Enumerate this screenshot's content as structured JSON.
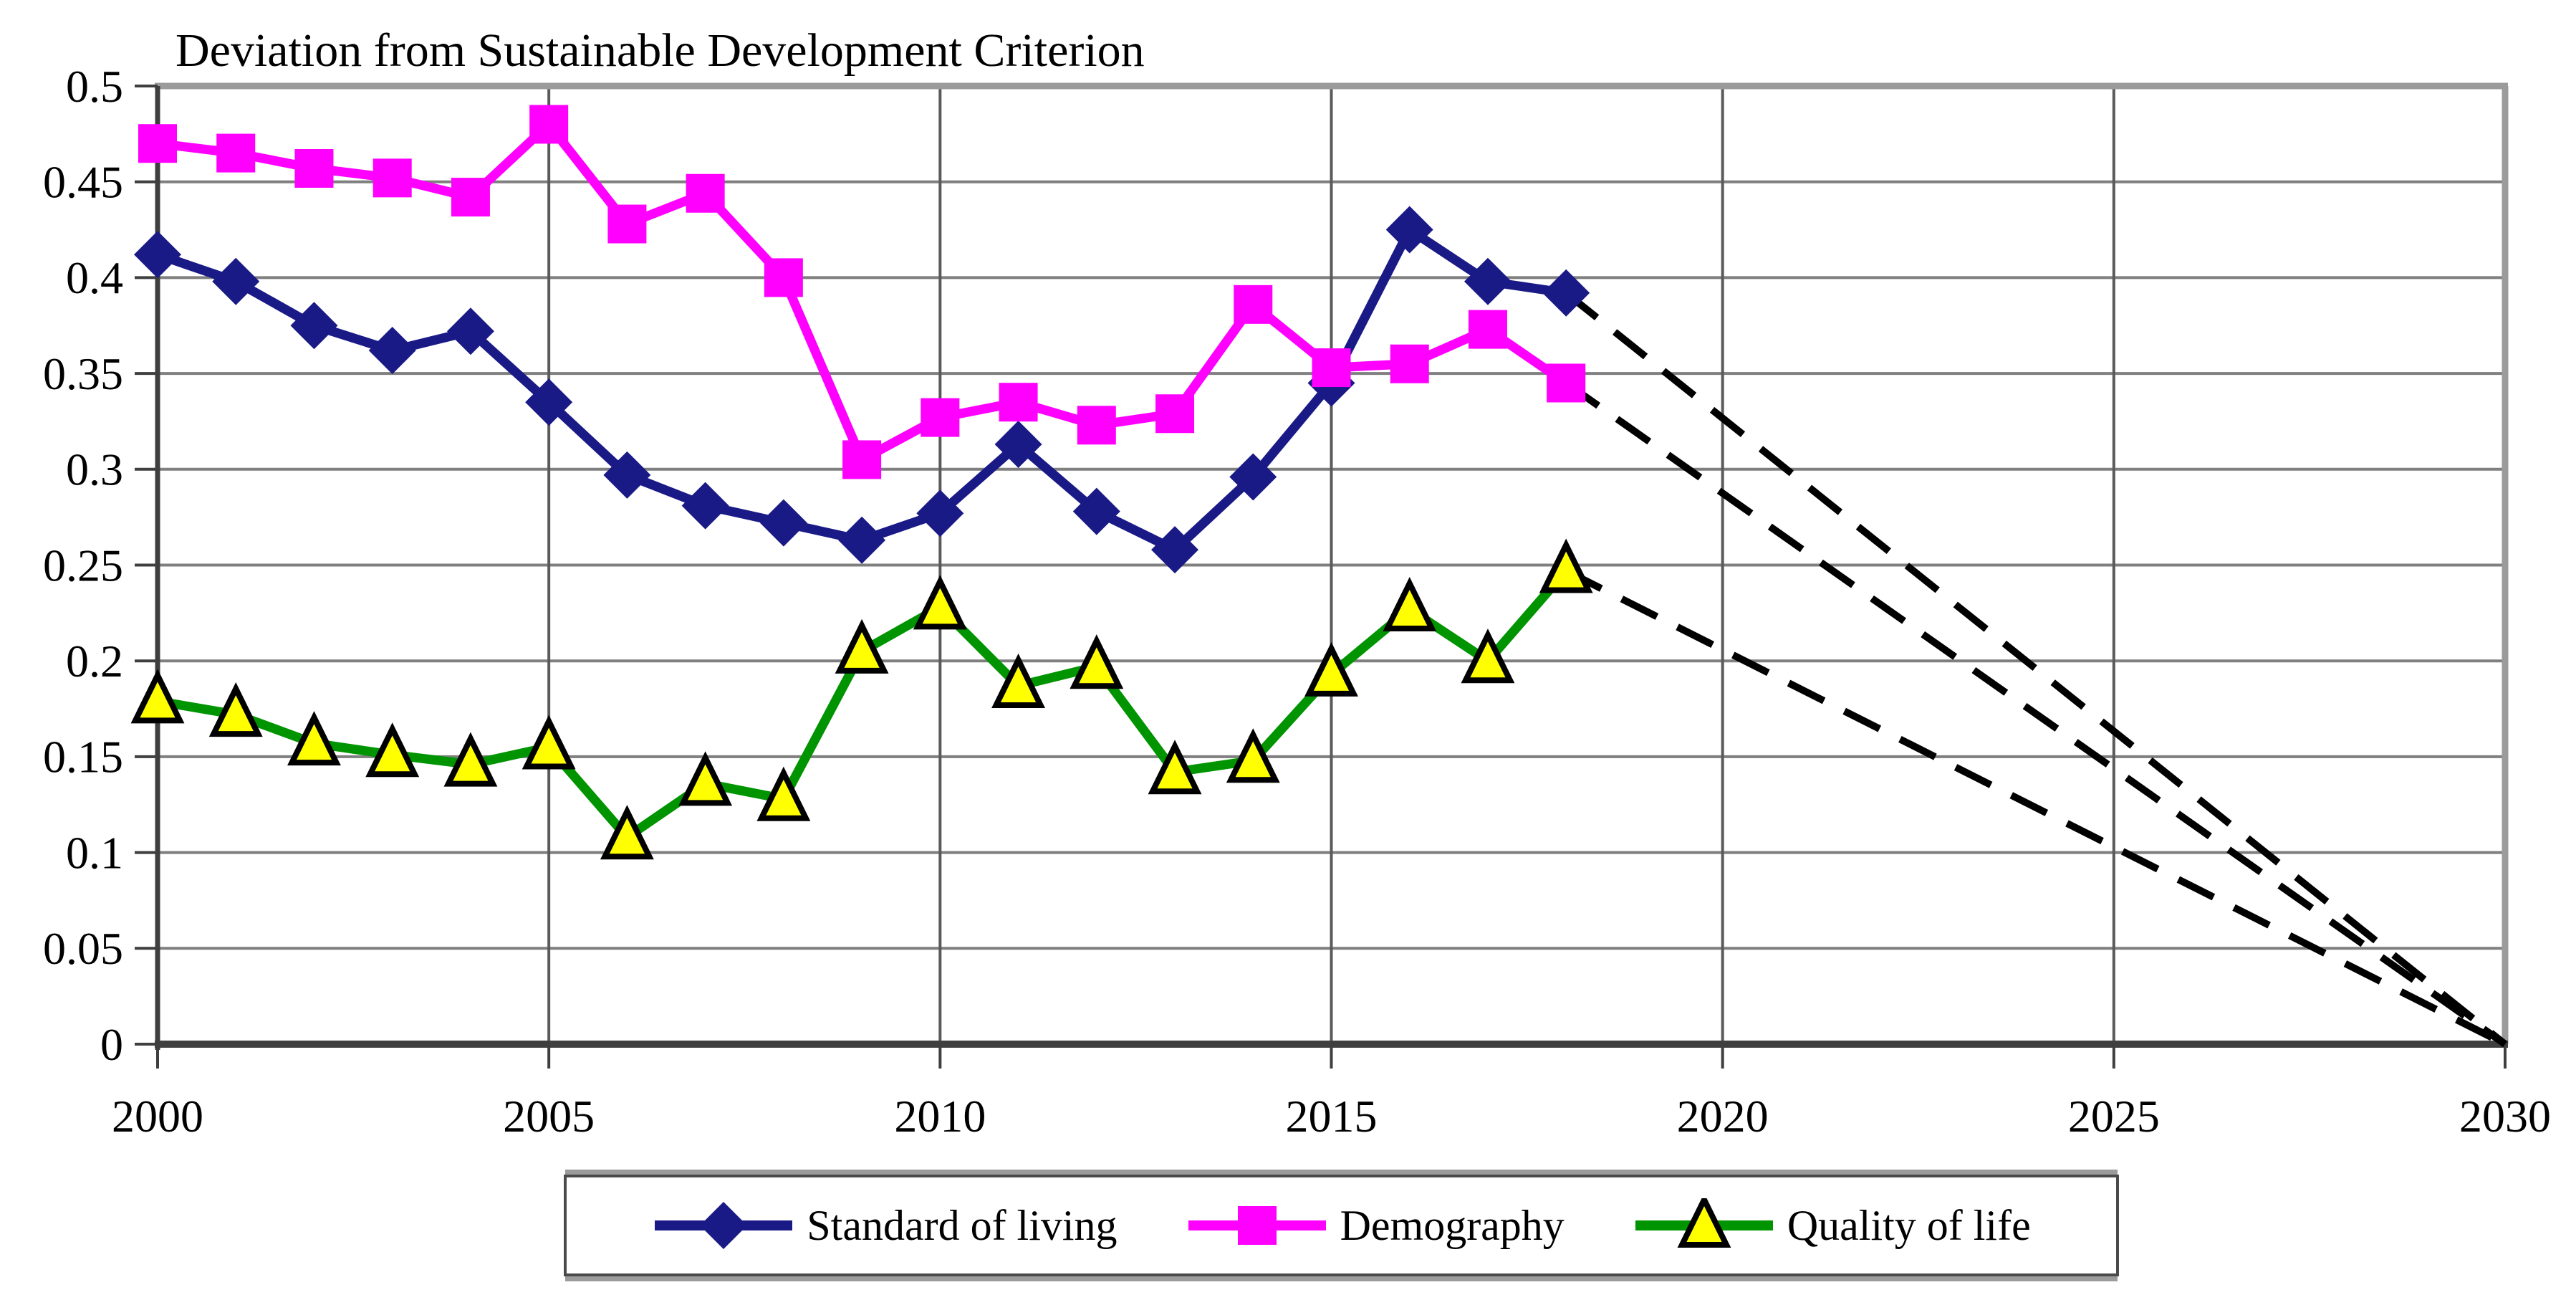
{
  "figure": {
    "background": "#ffffff",
    "title": "Deviation from Sustainable Development Criterion"
  },
  "chart_data": {
    "type": "line",
    "title": "Deviation from Sustainable Development Criterion",
    "xlabel": "",
    "ylabel": "",
    "xlim": [
      2000,
      2030
    ],
    "ylim": [
      0,
      0.5
    ],
    "grid": true,
    "legend_position": "bottom",
    "x": [
      2000,
      2001,
      2002,
      2003,
      2004,
      2005,
      2006,
      2007,
      2008,
      2009,
      2010,
      2011,
      2012,
      2013,
      2014,
      2015,
      2016,
      2017,
      2018
    ],
    "x_ticks": [
      2000,
      2005,
      2010,
      2015,
      2020,
      2025,
      2030
    ],
    "x_tick_labels": [
      "2000",
      "2005",
      "2010",
      "2015",
      "2020",
      "2025",
      "2030"
    ],
    "y_ticks": [
      0,
      0.05,
      0.1,
      0.15,
      0.2,
      0.25,
      0.3,
      0.35,
      0.4,
      0.45,
      0.5
    ],
    "y_tick_labels": [
      "0",
      "0.05",
      "0.1",
      "0.15",
      "0.2",
      "0.25",
      "0.3",
      "0.35",
      "0.4",
      "0.45",
      "0.5"
    ],
    "series": [
      {
        "name": "Standard of living",
        "color": "#1a1a87",
        "marker": "diamond",
        "marker_fill": "#1a1a87",
        "marker_edge": "#1a1a87",
        "values": [
          0.412,
          0.398,
          0.375,
          0.362,
          0.372,
          0.335,
          0.297,
          0.281,
          0.272,
          0.263,
          0.277,
          0.313,
          0.278,
          0.258,
          0.296,
          0.345,
          0.425,
          0.398,
          0.392
        ]
      },
      {
        "name": "Demography",
        "color": "#ff00ff",
        "marker": "square",
        "marker_fill": "#ff00ff",
        "marker_edge": "#ff00ff",
        "values": [
          0.47,
          0.465,
          0.457,
          0.452,
          0.442,
          0.48,
          0.428,
          0.444,
          0.4,
          0.305,
          0.327,
          0.335,
          0.323,
          0.329,
          0.386,
          0.353,
          0.355,
          0.373,
          0.345
        ]
      },
      {
        "name": "Quality of life",
        "color": "#009400",
        "marker": "triangle",
        "marker_fill": "#ffff00",
        "marker_edge": "#000000",
        "values": [
          0.179,
          0.172,
          0.157,
          0.151,
          0.146,
          0.155,
          0.108,
          0.136,
          0.128,
          0.205,
          0.228,
          0.187,
          0.197,
          0.142,
          0.148,
          0.193,
          0.227,
          0.2,
          0.247
        ]
      }
    ],
    "projections": {
      "style": "dashed",
      "color": "#000000",
      "from_year": 2018,
      "to_year": 2030,
      "to_value": 0
    },
    "colors": {
      "gridline": "#7f7f7f",
      "frame_light": "#9b9b9b",
      "axis_dark": "#3f3f3f"
    }
  }
}
